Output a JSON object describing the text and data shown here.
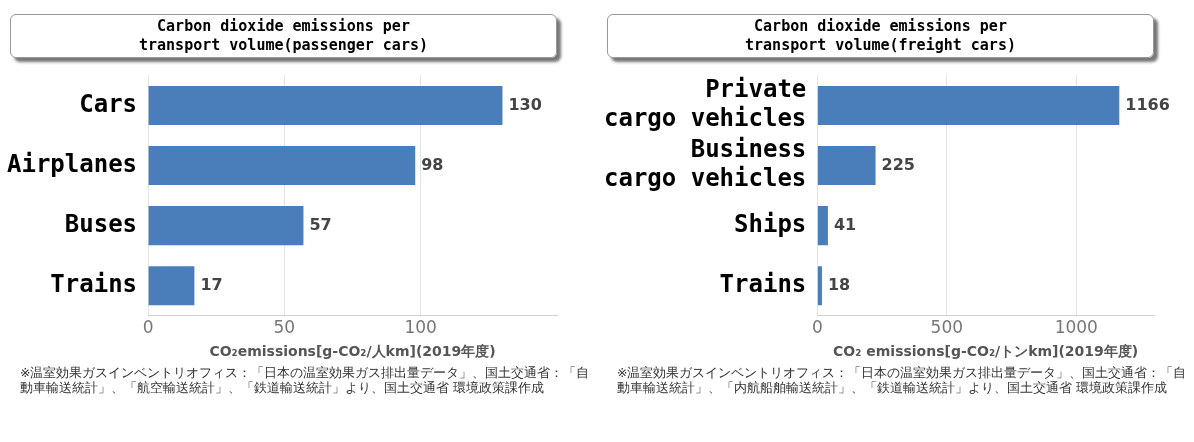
{
  "chart_data": [
    {
      "type": "bar",
      "orientation": "horizontal",
      "title": "Carbon dioxide emissions per transport volume(passenger cars)",
      "categories": [
        "Cars",
        "Airplanes",
        "Buses",
        "Trains"
      ],
      "values": [
        130,
        98,
        57,
        17
      ],
      "color": "#4a7ebb",
      "xlim": [
        0,
        150
      ],
      "xticks": [
        0,
        50,
        100
      ],
      "grid": "x",
      "data_labels": true,
      "legend": false,
      "xlabel": "CO₂emissions[g-CO₂/人km](2019年度)",
      "annotations": [
        "※温室効果ガスインベントリオフィス：「日本の温室効果ガス排出量データ」、国土交通省：「自動車輸送統計」、「航空輸送統計」、「鉄道輸送統計」より、国土交通省 環境政策課作成"
      ]
    },
    {
      "type": "bar",
      "orientation": "horizontal",
      "title": "Carbon dioxide emissions per transport volume(freight cars)",
      "categories": [
        "Private cargo vehicles",
        "Business cargo vehicles",
        "Ships",
        "Trains"
      ],
      "values": [
        1166,
        225,
        41,
        18
      ],
      "color": "#4a7ebb",
      "xlim": [
        0,
        1300
      ],
      "xticks": [
        0,
        500,
        1000
      ],
      "grid": "x",
      "data_labels": true,
      "legend": false,
      "xlabel": "CO₂ emissions[g-CO₂/トンkm](2019年度)",
      "annotations": [
        "※温室効果ガスインベントリオフィス：「日本の温室効果ガス排出量データ」、国土交通省：「自動車輸送統計」、「内航船舶輸送統計」、「鉄道輸送統計」より、国土交通省 環境政策課作成"
      ]
    }
  ]
}
